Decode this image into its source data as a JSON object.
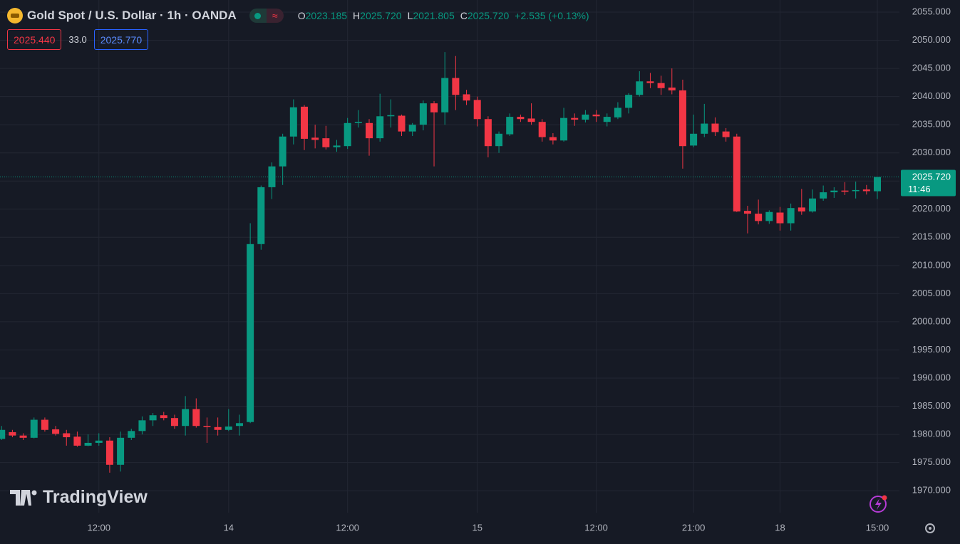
{
  "header": {
    "title": "Gold Spot / U.S. Dollar · 1h · OANDA",
    "ohlc": [
      {
        "key": "O",
        "value": "2023.185"
      },
      {
        "key": "H",
        "value": "2025.720"
      },
      {
        "key": "L",
        "value": "2021.805"
      },
      {
        "key": "C",
        "value": "2025.720"
      }
    ],
    "change": "+2.535 (+0.13%)",
    "bid": "2025.440",
    "spread": "33.0",
    "ask": "2025.770",
    "price_tag": "2025.720",
    "countdown": "11:46",
    "brand": "TradingView"
  },
  "chart_data": {
    "type": "candlestick",
    "categories": [
      null,
      null,
      null,
      null,
      null,
      null,
      null,
      null,
      null,
      "12:00",
      null,
      null,
      null,
      null,
      null,
      null,
      null,
      null,
      null,
      null,
      null,
      "14",
      null,
      null,
      null,
      null,
      null,
      null,
      null,
      null,
      null,
      null,
      "12:00",
      null,
      null,
      null,
      null,
      null,
      null,
      null,
      null,
      null,
      null,
      null,
      "15",
      null,
      null,
      null,
      null,
      null,
      null,
      null,
      null,
      null,
      null,
      "12:00",
      null,
      null,
      null,
      null,
      null,
      null,
      null,
      null,
      "21:00",
      null,
      null,
      null,
      null,
      null,
      null,
      null,
      "18",
      null,
      null,
      null,
      null,
      null,
      null,
      null,
      null,
      "15:00"
    ],
    "open": [
      1979.2,
      1980.4,
      1979.8,
      1979.4,
      1982.6,
      1980.9,
      1980.2,
      1979.6,
      1978,
      1978.5,
      1978.9,
      1974.6,
      1979.4,
      1980.6,
      1982.5,
      1983.4,
      1982.9,
      1981.5,
      1984.5,
      1981.5,
      1981.3,
      1980.8,
      1981.5,
      1982.2,
      2013.8,
      2023.9,
      2027.6,
      2032.9,
      2038.2,
      2032.7,
      2032.6,
      2031,
      2031.2,
      2035.3,
      2035.3,
      2032.6,
      2036.5,
      2036.6,
      2033.8,
      2035,
      2038.8,
      2037.2,
      2043.3,
      2040.4,
      2039.4,
      2036,
      2031.2,
      2033.3,
      2036.4,
      2036.1,
      2035.5,
      2032.8,
      2032.2,
      2036.2,
      2035.9,
      2036.8,
      2035.5,
      2036.3,
      2038,
      2040.3,
      2042.7,
      2042.4,
      2041.6,
      2041.1,
      2031.3,
      2033.4,
      2035.2,
      2033.8,
      2032.9,
      2019.7,
      2019.2,
      2017.9,
      2019.4,
      2017.5,
      2020.3,
      2019.6,
      2021.9,
      2023,
      2023.3,
      2023.2,
      2023.5,
      2023.185
    ],
    "high": [
      1981.5,
      1980.8,
      1980.2,
      1983,
      1983,
      1981.5,
      1980.8,
      1980.5,
      1980,
      1980.2,
      1979.5,
      1980.5,
      1981,
      1983.2,
      1983.8,
      1984,
      1983.5,
      1986.8,
      1986.4,
      1983,
      1983,
      1984.5,
      1983.5,
      2017.5,
      2024.2,
      2028.3,
      2033.4,
      2039.5,
      2038.5,
      2035,
      2034.8,
      2032.3,
      2036.2,
      2037.6,
      2036,
      2040.5,
      2039.5,
      2036.8,
      2035.3,
      2039.3,
      2039.2,
      2047.9,
      2047.2,
      2041.2,
      2040,
      2036.5,
      2033.8,
      2037,
      2036.8,
      2038.8,
      2036,
      2033.5,
      2038,
      2037,
      2037.6,
      2037.6,
      2037,
      2039,
      2040.6,
      2044.5,
      2044.2,
      2043.7,
      2045,
      2043,
      2036.8,
      2038.7,
      2036.3,
      2034.4,
      2033.4,
      2020.6,
      2021.7,
      2019.8,
      2020.4,
      2021,
      2023.6,
      2023.5,
      2024.2,
      2023.9,
      2024.8,
      2024.9,
      2024.3,
      2025.72
    ],
    "low": [
      1979,
      1979.5,
      1979,
      1979.3,
      1980.5,
      1979.8,
      1978,
      1977.8,
      1977.9,
      1978,
      1973.2,
      1973.4,
      1979,
      1980,
      1981.5,
      1982.5,
      1981,
      1979.8,
      1981.2,
      1978.5,
      1979.8,
      1980.6,
      1979.8,
      1982,
      2012.8,
      2021.8,
      2024.3,
      2031.5,
      2030.5,
      2030.8,
      2030.6,
      2030.2,
      2030.7,
      2034.5,
      2029.5,
      2032,
      2034.5,
      2033,
      2033,
      2034,
      2027.6,
      2035,
      2037.6,
      2038.5,
      2034.7,
      2029.2,
      2030,
      2033,
      2035.5,
      2035,
      2032,
      2031.5,
      2032,
      2034.8,
      2035.4,
      2035.5,
      2034.7,
      2036,
      2037,
      2040,
      2041.5,
      2040.3,
      2040.4,
      2027.2,
      2031,
      2032.8,
      2033,
      2032,
      2019.5,
      2015.7,
      2017.3,
      2017.4,
      2016.2,
      2016.2,
      2019,
      2019.4,
      2021.5,
      2022,
      2022.5,
      2021.9,
      2022.6,
      2021.805
    ],
    "close": [
      1980.8,
      1979.8,
      1979.4,
      1982.6,
      1980.8,
      1980.1,
      1979.5,
      1978,
      1978.5,
      1978.9,
      1974.6,
      1979.4,
      1980.6,
      1982.5,
      1983.4,
      1982.9,
      1981.5,
      1984.5,
      1981.5,
      1981.3,
      1980.8,
      1981.4,
      1982,
      2013.8,
      2023.9,
      2027.6,
      2032.9,
      2038.1,
      2032.5,
      2032.3,
      2031,
      2031.3,
      2035.3,
      2035.5,
      2032.6,
      2036.5,
      2036.7,
      2033.8,
      2035,
      2038.8,
      2037.2,
      2043.3,
      2040.3,
      2039.3,
      2036,
      2031.2,
      2033.4,
      2036.4,
      2036,
      2035.5,
      2032.8,
      2032.2,
      2036.2,
      2035.9,
      2036.8,
      2036.5,
      2036.4,
      2038,
      2040.3,
      2042.7,
      2042.4,
      2041.5,
      2041.1,
      2031.2,
      2033.4,
      2035.2,
      2033.7,
      2032.8,
      2019.6,
      2019.2,
      2017.9,
      2019.5,
      2017.5,
      2020.2,
      2019.6,
      2021.9,
      2023,
      2023.3,
      2023.1,
      2023.4,
      2023.2,
      2025.72
    ],
    "up_color": "#089981",
    "down_color": "#f23645",
    "ylim": [
      1966.1,
      2057.15
    ],
    "yticks": [
      {
        "value": 1970,
        "label": "1970.000"
      },
      {
        "value": 1975,
        "label": "1975.000"
      },
      {
        "value": 1980,
        "label": "1980.000"
      },
      {
        "value": 1985,
        "label": "1985.000"
      },
      {
        "value": 1990,
        "label": "1990.000"
      },
      {
        "value": 1995,
        "label": "1995.000"
      },
      {
        "value": 2000,
        "label": "2000.000"
      },
      {
        "value": 2005,
        "label": "2005.000"
      },
      {
        "value": 2010,
        "label": "2010.000"
      },
      {
        "value": 2015,
        "label": "2015.000"
      },
      {
        "value": 2020,
        "label": "2020.000"
      },
      {
        "value": 2025,
        "label": "2025.000"
      },
      {
        "value": 2030,
        "label": "2030.000"
      },
      {
        "value": 2035,
        "label": "2035.000"
      },
      {
        "value": 2040,
        "label": "2040.000"
      },
      {
        "value": 2045,
        "label": "2045.000"
      },
      {
        "value": 2050,
        "label": "2050.000"
      },
      {
        "value": 2055,
        "label": "2055.000"
      }
    ],
    "grid": true
  }
}
